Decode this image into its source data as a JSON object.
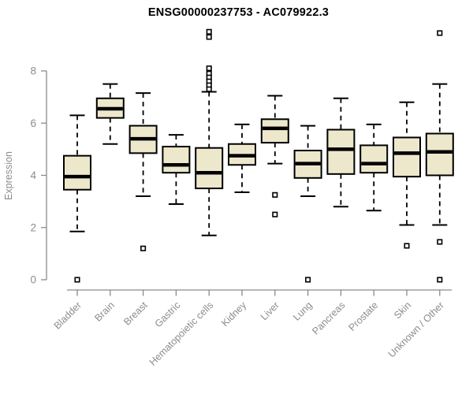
{
  "chart_data": {
    "type": "boxplot",
    "title": "ENSG00000237753 - AC079922.3",
    "ylabel": "Expression",
    "xlabel": "",
    "yticks": [
      0,
      2,
      4,
      6,
      8
    ],
    "ylim": [
      0,
      9.6
    ],
    "grid": false,
    "legend": null,
    "categories": [
      "Bladder",
      "Brain",
      "Breast",
      "Gastric",
      "Hematopoietic cells",
      "Kidney",
      "Liver",
      "Lung",
      "Pancreas",
      "Prostate",
      "Skin",
      "Unknown / Other"
    ],
    "series": [
      {
        "label": "Bladder",
        "low": 1.85,
        "q1": 3.45,
        "median": 3.95,
        "q3": 4.75,
        "high": 6.3,
        "outliers": [
          0
        ]
      },
      {
        "label": "Brain",
        "low": 5.2,
        "q1": 6.2,
        "median": 6.55,
        "q3": 6.95,
        "high": 7.5,
        "outliers": []
      },
      {
        "label": "Breast",
        "low": 3.2,
        "q1": 4.85,
        "median": 5.4,
        "q3": 5.9,
        "high": 7.15,
        "outliers": [
          1.2
        ]
      },
      {
        "label": "Gastric",
        "low": 2.9,
        "q1": 4.1,
        "median": 4.4,
        "q3": 5.1,
        "high": 5.55,
        "outliers": []
      },
      {
        "label": "Hematopoietic cells",
        "low": 1.7,
        "q1": 3.5,
        "median": 4.1,
        "q3": 5.05,
        "high": 7.2,
        "outliers": [
          9.5,
          9.3,
          8.1,
          7.9,
          7.75,
          7.6,
          7.45,
          7.3
        ]
      },
      {
        "label": "Kidney",
        "low": 3.35,
        "q1": 4.4,
        "median": 4.75,
        "q3": 5.2,
        "high": 5.95,
        "outliers": []
      },
      {
        "label": "Liver",
        "low": 4.45,
        "q1": 5.25,
        "median": 5.8,
        "q3": 6.15,
        "high": 7.05,
        "outliers": [
          3.25,
          2.5
        ]
      },
      {
        "label": "Lung",
        "low": 3.2,
        "q1": 3.9,
        "median": 4.45,
        "q3": 4.95,
        "high": 5.9,
        "outliers": [
          0
        ]
      },
      {
        "label": "Pancreas",
        "low": 2.8,
        "q1": 4.05,
        "median": 5.0,
        "q3": 5.75,
        "high": 6.95,
        "outliers": []
      },
      {
        "label": "Prostate",
        "low": 2.65,
        "q1": 4.1,
        "median": 4.45,
        "q3": 5.15,
        "high": 5.95,
        "outliers": []
      },
      {
        "label": "Skin",
        "low": 2.1,
        "q1": 3.95,
        "median": 4.85,
        "q3": 5.45,
        "high": 6.8,
        "outliers": [
          1.3
        ]
      },
      {
        "label": "Unknown / Other",
        "low": 2.1,
        "q1": 4.0,
        "median": 4.9,
        "q3": 5.6,
        "high": 7.5,
        "outliers": [
          9.45,
          1.45,
          0
        ]
      }
    ],
    "colors": {
      "box_fill": "#EDE7CC",
      "box_border": "#000000",
      "median": "#000000",
      "axis": "#8A8A8A",
      "labels": "#8C8C8C",
      "title": "#000000",
      "background": "#FFFFFF"
    }
  }
}
